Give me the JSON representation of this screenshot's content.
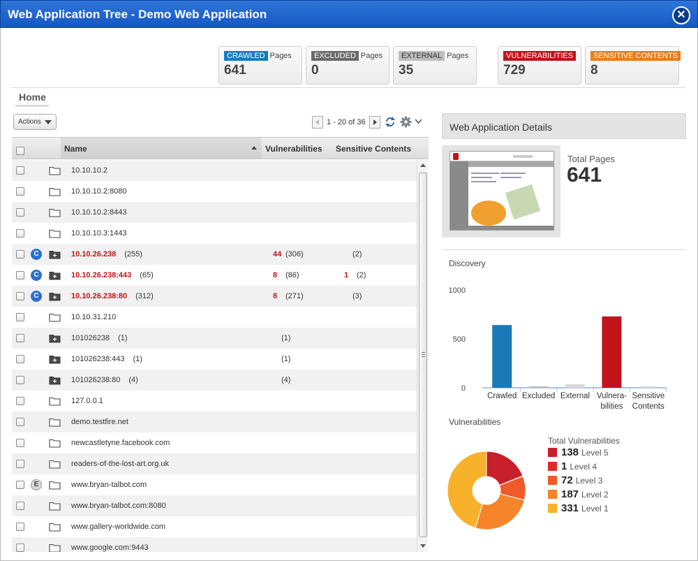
{
  "window": {
    "title": "Web Application Tree - Demo Web Application"
  },
  "stats": [
    {
      "badge": "CRAWLED",
      "suffix": "Pages",
      "value": "641",
      "color": "#1a7ab8"
    },
    {
      "badge": "EXCLUDED",
      "suffix": "Pages",
      "value": "0",
      "color": "#6a6a6a"
    },
    {
      "badge": "EXTERNAL",
      "suffix": "Pages",
      "value": "35",
      "color": "#bdbdbd"
    },
    {
      "badge": "VULNERABILITIES",
      "suffix": "",
      "value": "729",
      "color": "#c1141a"
    },
    {
      "badge": "SENSITIVE CONTENTS",
      "suffix": "",
      "value": "8",
      "color": "#e87e1a"
    }
  ],
  "breadcrumb": {
    "home": "Home"
  },
  "toolbar": {
    "actions_label": "Actions",
    "paging_text": "1 - 20 of 36"
  },
  "grid": {
    "headers": {
      "name": "Name",
      "vulnerabilities": "Vulnerabilities",
      "sensitive": "Sensitive Contents"
    },
    "rows": [
      {
        "name": "10.10.10.2",
        "folder": "open",
        "badge": "",
        "red": false,
        "count": "",
        "vuln": "",
        "vuln_total": "",
        "sens": "",
        "sens_total": ""
      },
      {
        "name": "10.10.10.2:8080",
        "folder": "open",
        "badge": "",
        "red": false,
        "count": "",
        "vuln": "",
        "vuln_total": "",
        "sens": "",
        "sens_total": ""
      },
      {
        "name": "10.10.10.2:8443",
        "folder": "open",
        "badge": "",
        "red": false,
        "count": "",
        "vuln": "",
        "vuln_total": "",
        "sens": "",
        "sens_total": ""
      },
      {
        "name": "10.10.10.3:1443",
        "folder": "open",
        "badge": "",
        "red": false,
        "count": "",
        "vuln": "",
        "vuln_total": "",
        "sens": "",
        "sens_total": ""
      },
      {
        "name": "10.10.26.238",
        "folder": "filled",
        "badge": "C",
        "red": true,
        "count": "(255)",
        "vuln": "44",
        "vuln_total": "(306)",
        "sens": "",
        "sens_total": "(2)"
      },
      {
        "name": "10.10.26.238:443",
        "folder": "filled",
        "badge": "C",
        "red": true,
        "count": "(65)",
        "vuln": "8",
        "vuln_total": "(86)",
        "sens": "1",
        "sens_total": "(2)"
      },
      {
        "name": "10.10.26.238:80",
        "folder": "filled",
        "badge": "C",
        "red": true,
        "count": "(312)",
        "vuln": "8",
        "vuln_total": "(271)",
        "sens": "",
        "sens_total": "(3)"
      },
      {
        "name": "10.10.31.210",
        "folder": "open",
        "badge": "",
        "red": false,
        "count": "",
        "vuln": "",
        "vuln_total": "",
        "sens": "",
        "sens_total": ""
      },
      {
        "name": "101026238",
        "folder": "filled",
        "badge": "",
        "red": false,
        "count": "(1)",
        "vuln": "",
        "vuln_total": "(1)",
        "sens": "",
        "sens_total": ""
      },
      {
        "name": "101026238:443",
        "folder": "filled",
        "badge": "",
        "red": false,
        "count": "(1)",
        "vuln": "",
        "vuln_total": "(1)",
        "sens": "",
        "sens_total": ""
      },
      {
        "name": "101026238:80",
        "folder": "filled",
        "badge": "",
        "red": false,
        "count": "(4)",
        "vuln": "",
        "vuln_total": "(4)",
        "sens": "",
        "sens_total": ""
      },
      {
        "name": "127.0.0.1",
        "folder": "open",
        "badge": "",
        "red": false,
        "count": "",
        "vuln": "",
        "vuln_total": "",
        "sens": "",
        "sens_total": ""
      },
      {
        "name": "demo.testfire.net",
        "folder": "open",
        "badge": "",
        "red": false,
        "count": "",
        "vuln": "",
        "vuln_total": "",
        "sens": "",
        "sens_total": ""
      },
      {
        "name": "newcastletyne.facebook.com",
        "folder": "open",
        "badge": "",
        "red": false,
        "count": "",
        "vuln": "",
        "vuln_total": "",
        "sens": "",
        "sens_total": ""
      },
      {
        "name": "readers-of-the-lost-art.org.uk",
        "folder": "open",
        "badge": "",
        "red": false,
        "count": "",
        "vuln": "",
        "vuln_total": "",
        "sens": "",
        "sens_total": ""
      },
      {
        "name": "www.bryan-talbot.com",
        "folder": "open",
        "badge": "E",
        "red": false,
        "count": "",
        "vuln": "",
        "vuln_total": "",
        "sens": "",
        "sens_total": ""
      },
      {
        "name": "www.bryan-talbot.com:8080",
        "folder": "open",
        "badge": "",
        "red": false,
        "count": "",
        "vuln": "",
        "vuln_total": "",
        "sens": "",
        "sens_total": ""
      },
      {
        "name": "www.gallery-worldwide.com",
        "folder": "open",
        "badge": "",
        "red": false,
        "count": "",
        "vuln": "",
        "vuln_total": "",
        "sens": "",
        "sens_total": ""
      },
      {
        "name": "www.google.com:9443",
        "folder": "open",
        "badge": "",
        "red": false,
        "count": "",
        "vuln": "",
        "vuln_total": "",
        "sens": "",
        "sens_total": ""
      }
    ]
  },
  "details": {
    "title": "Web Application Details",
    "total_pages_label": "Total Pages",
    "total_pages": "641",
    "discovery_label": "Discovery",
    "vulnerabilities_label": "Vulnerabilities"
  },
  "chart_data": [
    {
      "type": "bar",
      "categories": [
        "Crawled",
        "Excluded",
        "External",
        "Vulnera-bilities",
        "Sensitive Contents"
      ],
      "values": [
        641,
        0,
        35,
        729,
        8
      ],
      "colors": [
        "#1a7ab8",
        "#bdbdbd",
        "#d9d9d9",
        "#c1141a",
        "#d9d9d9"
      ],
      "yticks": [
        0,
        500,
        1000
      ],
      "ylim": [
        0,
        1000
      ]
    },
    {
      "type": "pie",
      "title": "Total Vulnerabilities",
      "donut": true,
      "slices": [
        {
          "label": "Level 5",
          "value": 138,
          "color": "#c8202a"
        },
        {
          "label": "Level 4",
          "value": 1,
          "color": "#e02a2a"
        },
        {
          "label": "Level 3",
          "value": 72,
          "color": "#ef5a2a"
        },
        {
          "label": "Level 2",
          "value": 187,
          "color": "#f5842a"
        },
        {
          "label": "Level 1",
          "value": 331,
          "color": "#f7b12a"
        }
      ]
    }
  ]
}
